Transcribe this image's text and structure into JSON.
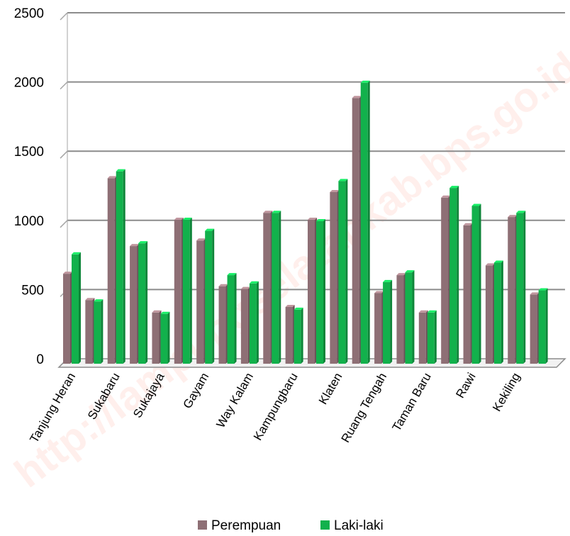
{
  "chart_data": {
    "type": "bar",
    "categories": [
      "Tanjung Heran",
      "",
      "Sukabaru",
      "",
      "Sukajaya",
      "",
      "Gayam",
      "",
      "Way Kalam",
      "",
      "Kampungbaru",
      "",
      "Klaten",
      "",
      "Ruang Tengah",
      "",
      "Taman Baru",
      "",
      "Rawi",
      "",
      "Kekiling",
      ""
    ],
    "series": [
      {
        "name": "Perempuan",
        "color": "#8E6F75",
        "values": [
          650,
          460,
          1340,
          850,
          370,
          1040,
          890,
          560,
          540,
          1090,
          410,
          1040,
          1240,
          1920,
          510,
          640,
          370,
          1200,
          1000,
          710,
          1060,
          500
        ]
      },
      {
        "name": "Laki-laki",
        "color": "#12B14C",
        "values": [
          790,
          450,
          1390,
          870,
          360,
          1040,
          960,
          640,
          580,
          1090,
          390,
          1030,
          1320,
          2030,
          590,
          660,
          370,
          1270,
          1140,
          730,
          1090,
          530
        ]
      }
    ],
    "yticks": [
      "0",
      "500",
      "1000",
      "1500",
      "2000",
      "2500"
    ],
    "ylim": [
      0,
      2500
    ],
    "grid": true,
    "legend_position": "bottom"
  },
  "watermark": "http://lampungselatankab.bps.go.id"
}
